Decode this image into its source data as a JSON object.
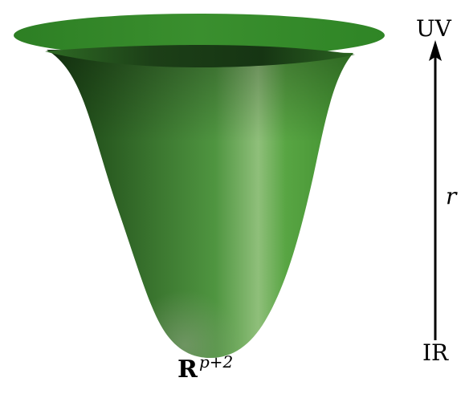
{
  "labels": {
    "uv": "UV",
    "ir": "IR",
    "radial": "r",
    "space_base": "R",
    "space_exponent": "p+2"
  },
  "colors": {
    "surface_main": "#3f8f2e",
    "surface_light": "#8fbf7a",
    "surface_dark": "#1f4e1a",
    "rim": "#2f7d25",
    "arrow": "#000000",
    "text": "#000000"
  }
}
